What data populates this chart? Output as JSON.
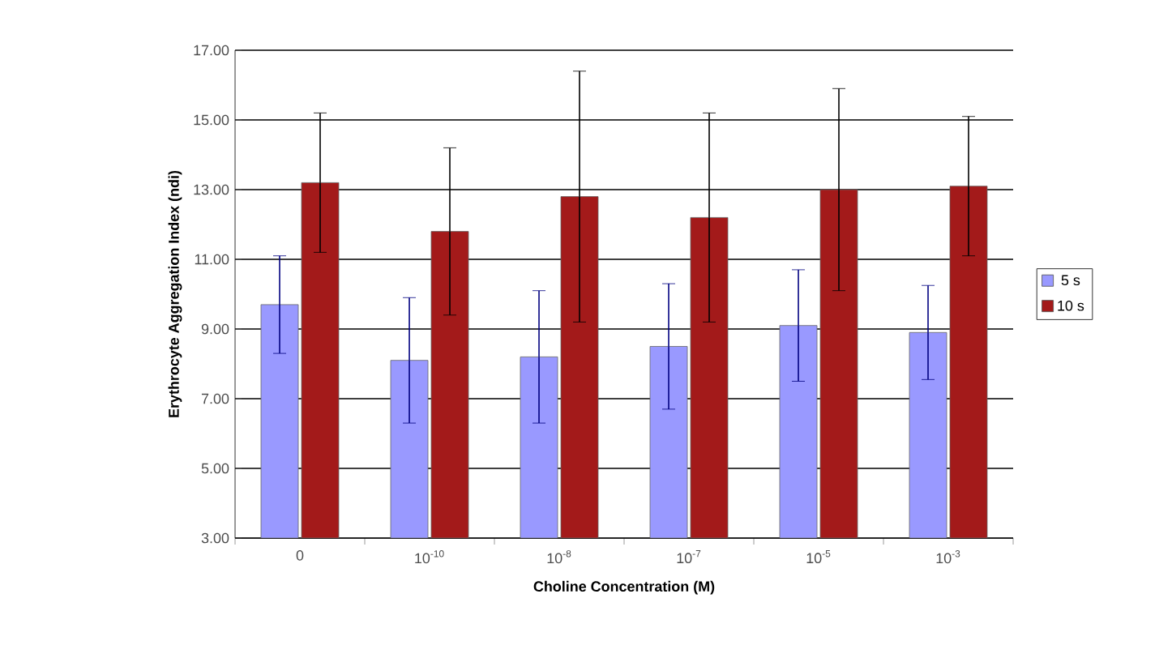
{
  "chart_data": {
    "type": "bar",
    "xlabel": "Choline Concentration (M)",
    "ylabel": "Erythrocyte Aggregation Index (ndi)",
    "categories": [
      "0",
      "10$^{-10}$",
      "10$^{-8}$",
      "10$^{-7}$",
      "10$^{-5}$",
      "10$^{-3}$"
    ],
    "series": [
      {
        "name": "5 s",
        "color": "#9999ff",
        "values": [
          9.7,
          8.1,
          8.2,
          8.5,
          9.1,
          8.9
        ],
        "errors": [
          1.4,
          1.8,
          1.9,
          1.8,
          1.6,
          1.35
        ]
      },
      {
        "name": "10 s",
        "color": "#a31a1a",
        "values": [
          13.2,
          11.8,
          12.8,
          12.2,
          13.0,
          13.1
        ],
        "errors": [
          2.0,
          2.4,
          3.6,
          3.0,
          2.9,
          2.0
        ]
      }
    ],
    "ylim": [
      3,
      17
    ],
    "yticks": [
      {
        "value": 3,
        "label": "3.00"
      },
      {
        "value": 5,
        "label": "5.00"
      },
      {
        "value": 7,
        "label": "7.00"
      },
      {
        "value": 9,
        "label": "9.00"
      },
      {
        "value": 11,
        "label": "11.00"
      },
      {
        "value": 13,
        "label": "13.00"
      },
      {
        "value": 15,
        "label": "15.00"
      },
      {
        "value": 17,
        "label": "17.00"
      }
    ],
    "grid": "y",
    "legend": "right"
  }
}
